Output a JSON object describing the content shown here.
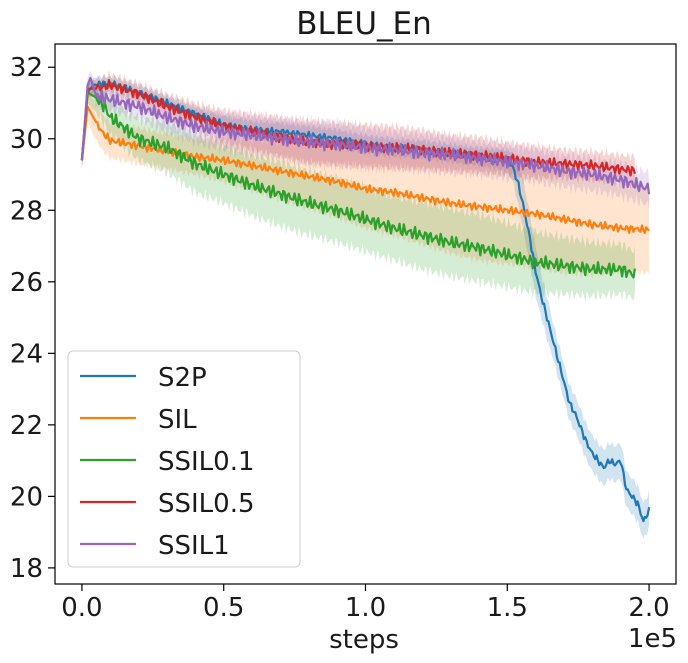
{
  "chart_data": {
    "type": "line",
    "title": "BLEU_En",
    "xlabel": "steps",
    "ylabel": "",
    "x_offset_label": "1e5",
    "xlim": [
      -0.095,
      2.095
    ],
    "ylim": [
      17.55,
      32.65
    ],
    "xticks": [
      0.0,
      0.5,
      1.0,
      1.5,
      2.0
    ],
    "xtick_labels": [
      "0.0",
      "0.5",
      "1.0",
      "1.5",
      "2.0"
    ],
    "yticks": [
      18,
      20,
      22,
      24,
      26,
      28,
      30,
      32
    ],
    "ytick_labels": [
      "18",
      "20",
      "22",
      "24",
      "26",
      "28",
      "30",
      "32"
    ],
    "grid": false,
    "legend_position": "lower-left",
    "series": [
      {
        "name": "S2P",
        "color": "#1f77b4",
        "x": [
          0.0,
          0.02,
          0.04,
          0.08,
          0.12,
          0.2,
          0.3,
          0.4,
          0.5,
          0.6,
          0.7,
          0.8,
          0.9,
          1.0,
          1.1,
          1.2,
          1.3,
          1.4,
          1.5,
          1.52,
          1.54,
          1.56,
          1.58,
          1.6,
          1.62,
          1.64,
          1.66,
          1.68,
          1.7,
          1.72,
          1.74,
          1.76,
          1.78,
          1.8,
          1.82,
          1.84,
          1.86,
          1.88,
          1.9,
          1.92,
          1.94,
          1.96,
          1.98,
          2.0
        ],
        "y": [
          29.4,
          31.3,
          31.5,
          31.55,
          31.5,
          31.3,
          31.0,
          30.7,
          30.4,
          30.25,
          30.2,
          30.1,
          30.0,
          29.85,
          29.75,
          29.7,
          29.6,
          29.5,
          29.4,
          29.2,
          28.7,
          28.0,
          27.2,
          26.3,
          25.6,
          25.0,
          24.4,
          23.8,
          23.2,
          22.6,
          22.3,
          21.9,
          21.5,
          21.2,
          21.0,
          20.8,
          21.0,
          20.9,
          21.0,
          20.2,
          20.0,
          19.8,
          19.3,
          19.6
        ],
        "band": [
          0.2,
          0.2,
          0.2,
          0.2,
          0.2,
          0.2,
          0.2,
          0.2,
          0.25,
          0.25,
          0.25,
          0.25,
          0.25,
          0.25,
          0.25,
          0.25,
          0.25,
          0.25,
          0.3,
          0.4,
          0.6,
          0.7,
          0.7,
          0.7,
          0.6,
          0.6,
          0.5,
          0.5,
          0.5,
          0.5,
          0.5,
          0.5,
          0.5,
          0.5,
          0.5,
          0.5,
          0.5,
          0.5,
          0.5,
          0.5,
          0.5,
          0.5,
          0.5,
          0.5
        ],
        "noise": 0.1
      },
      {
        "name": "SIL",
        "color": "#ff7f0e",
        "x": [
          0.0,
          0.02,
          0.04,
          0.07,
          0.1,
          0.2,
          0.3,
          0.4,
          0.5,
          0.6,
          0.7,
          0.8,
          0.9,
          1.0,
          1.1,
          1.2,
          1.3,
          1.4,
          1.5,
          1.6,
          1.7,
          1.8,
          1.9,
          2.0
        ],
        "y": [
          29.4,
          30.9,
          30.6,
          30.2,
          29.95,
          29.8,
          29.65,
          29.5,
          29.4,
          29.25,
          29.1,
          28.95,
          28.8,
          28.6,
          28.5,
          28.35,
          28.2,
          28.1,
          28.0,
          27.9,
          27.75,
          27.6,
          27.5,
          27.45
        ],
        "band": [
          0.2,
          0.4,
          0.5,
          0.5,
          0.5,
          0.5,
          0.5,
          0.5,
          0.6,
          0.7,
          0.8,
          0.9,
          1.0,
          1.1,
          1.2,
          1.3,
          1.4,
          1.5,
          1.5,
          1.5,
          1.5,
          1.4,
          1.2,
          1.2
        ],
        "noise": 0.12
      },
      {
        "name": "SSIL0.1",
        "color": "#2ca02c",
        "x": [
          0.0,
          0.02,
          0.05,
          0.08,
          0.1,
          0.2,
          0.3,
          0.4,
          0.5,
          0.6,
          0.7,
          0.8,
          0.9,
          1.0,
          1.1,
          1.2,
          1.3,
          1.4,
          1.5,
          1.6,
          1.7,
          1.8,
          1.9,
          1.95
        ],
        "y": [
          29.4,
          31.3,
          31.15,
          30.9,
          30.6,
          30.0,
          29.75,
          29.3,
          29.0,
          28.7,
          28.45,
          28.2,
          28.0,
          27.75,
          27.5,
          27.3,
          27.1,
          26.95,
          26.75,
          26.55,
          26.45,
          26.35,
          26.35,
          26.2
        ],
        "band": [
          0.2,
          0.3,
          0.4,
          0.5,
          0.5,
          0.6,
          0.7,
          0.8,
          0.8,
          0.85,
          0.9,
          0.9,
          0.9,
          0.9,
          0.9,
          0.95,
          0.95,
          0.95,
          0.9,
          0.85,
          0.8,
          0.75,
          0.7,
          0.65
        ],
        "noise": 0.2
      },
      {
        "name": "SSIL0.5",
        "color": "#d62728",
        "x": [
          0.0,
          0.02,
          0.05,
          0.1,
          0.2,
          0.3,
          0.4,
          0.5,
          0.6,
          0.7,
          0.8,
          0.9,
          1.0,
          1.1,
          1.2,
          1.3,
          1.4,
          1.5,
          1.6,
          1.7,
          1.8,
          1.9,
          1.95
        ],
        "y": [
          29.4,
          31.4,
          31.4,
          31.5,
          31.25,
          30.9,
          30.6,
          30.35,
          30.2,
          30.05,
          29.9,
          29.85,
          29.8,
          29.75,
          29.7,
          29.6,
          29.55,
          29.45,
          29.35,
          29.3,
          29.25,
          29.15,
          29.1
        ],
        "band": [
          0.2,
          0.2,
          0.25,
          0.3,
          0.3,
          0.35,
          0.4,
          0.45,
          0.5,
          0.55,
          0.6,
          0.6,
          0.6,
          0.6,
          0.55,
          0.5,
          0.5,
          0.45,
          0.45,
          0.4,
          0.4,
          0.4,
          0.4
        ],
        "noise": 0.15
      },
      {
        "name": "SSIL1",
        "color": "#9467bd",
        "x": [
          0.0,
          0.02,
          0.03,
          0.05,
          0.1,
          0.2,
          0.3,
          0.4,
          0.5,
          0.6,
          0.7,
          0.8,
          0.9,
          1.0,
          1.1,
          1.2,
          1.3,
          1.4,
          1.5,
          1.6,
          1.7,
          1.8,
          1.9,
          2.0
        ],
        "y": [
          29.4,
          31.5,
          31.7,
          31.2,
          31.1,
          30.9,
          30.6,
          30.35,
          30.2,
          30.1,
          30.0,
          29.9,
          29.85,
          29.75,
          29.7,
          29.6,
          29.55,
          29.45,
          29.35,
          29.25,
          29.1,
          29.0,
          28.85,
          28.6
        ],
        "band": [
          0.2,
          0.2,
          0.2,
          0.3,
          0.3,
          0.35,
          0.4,
          0.45,
          0.5,
          0.55,
          0.55,
          0.6,
          0.6,
          0.55,
          0.5,
          0.5,
          0.5,
          0.45,
          0.45,
          0.45,
          0.45,
          0.45,
          0.45,
          0.45
        ],
        "noise": 0.2
      }
    ]
  }
}
